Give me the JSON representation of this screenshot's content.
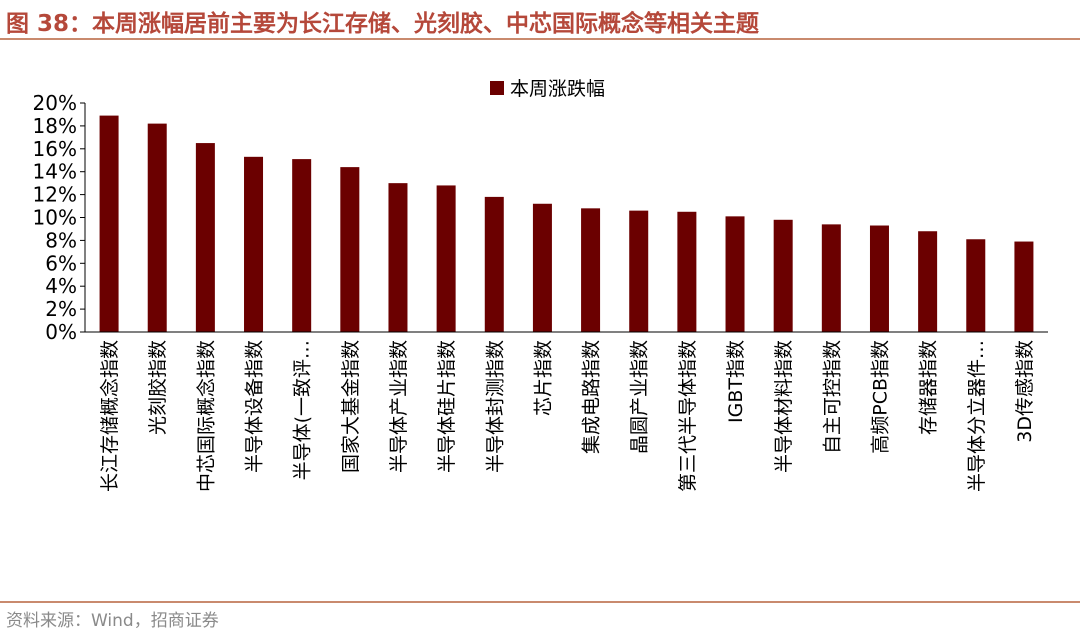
{
  "figure": {
    "title": "图 38：本周涨幅居前主要为长江存储、光刻胶、中芯国际概念等相关主题",
    "source": "资料来源：Wind，招商证券"
  },
  "chart_data": {
    "type": "bar",
    "title": "",
    "xlabel": "",
    "ylabel": "",
    "ylim": [
      0,
      20
    ],
    "y_ticks": [
      "0%",
      "2%",
      "4%",
      "6%",
      "8%",
      "10%",
      "12%",
      "14%",
      "16%",
      "18%",
      "20%"
    ],
    "grid": false,
    "legend_position": "top-center",
    "bar_color": "#6b0000",
    "categories": [
      "长江存储概念指数",
      "光刻胶指数",
      "中芯国际概念指数",
      "半导体设备指数",
      "半导体(一致评…",
      "国家大基金指数",
      "半导体产业指数",
      "半导体硅片指数",
      "半导体封测指数",
      "芯片指数",
      "集成电路指数",
      "晶圆产业指数",
      "第三代半导体指数",
      "IGBT指数",
      "半导体材料指数",
      "自主可控指数",
      "高频PCB指数",
      "存储器指数",
      "半导体分立器件…",
      "3D传感指数"
    ],
    "series": [
      {
        "name": "本周涨跌幅",
        "values": [
          18.9,
          18.2,
          16.5,
          15.3,
          15.1,
          14.4,
          13.0,
          12.8,
          11.8,
          11.2,
          10.8,
          10.6,
          10.5,
          10.1,
          9.8,
          9.4,
          9.3,
          8.8,
          8.1,
          7.9
        ]
      }
    ]
  }
}
